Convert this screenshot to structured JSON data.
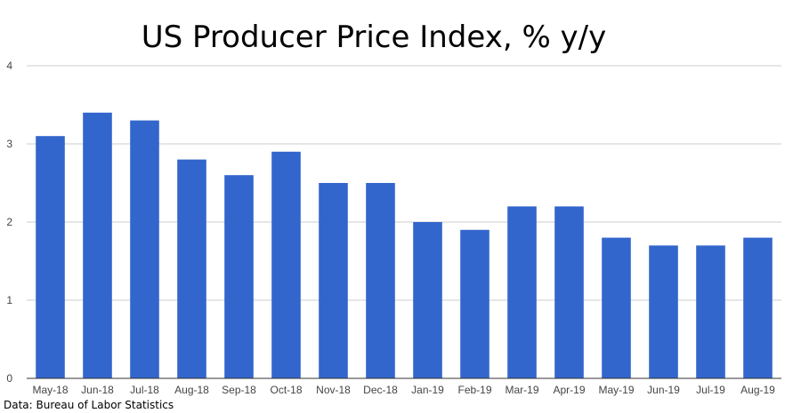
{
  "chart_data": {
    "type": "bar",
    "title": "US Producer Price Index, % y/y",
    "categories": [
      "May-18",
      "Jun-18",
      "Jul-18",
      "Aug-18",
      "Sep-18",
      "Oct-18",
      "Nov-18",
      "Dec-18",
      "Jan-19",
      "Feb-19",
      "Mar-19",
      "Apr-19",
      "May-19",
      "Jun-19",
      "Jul-19",
      "Aug-19"
    ],
    "values": [
      3.1,
      3.4,
      3.3,
      2.8,
      2.6,
      2.9,
      2.5,
      2.5,
      2.0,
      1.9,
      2.2,
      2.2,
      1.8,
      1.7,
      1.7,
      1.8
    ],
    "xlabel": "",
    "ylabel": "",
    "ylim": [
      0,
      4
    ],
    "yticks": [
      "0",
      "1",
      "2",
      "3",
      "4"
    ],
    "grid": true,
    "bar_color": "#3366cc",
    "gridline_color": "#cccccc",
    "axis_color": "#333333"
  },
  "source": "Data: Bureau of Labor Statistics"
}
